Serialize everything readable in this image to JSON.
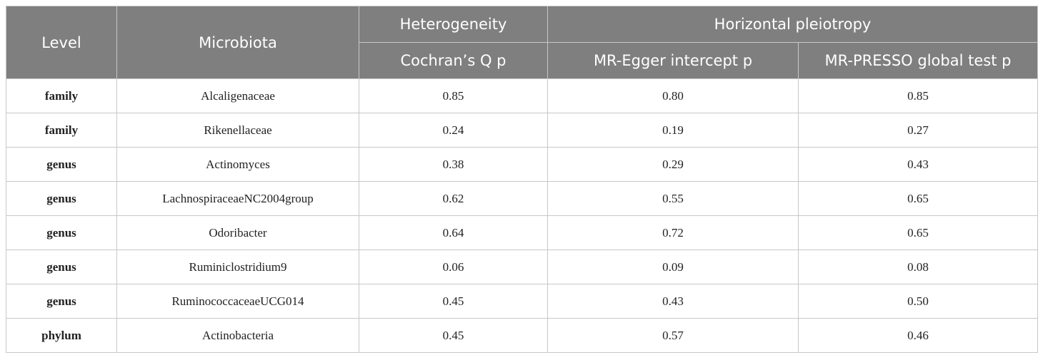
{
  "table": {
    "header": {
      "level": "Level",
      "microbiota": "Microbiota",
      "heterogeneity": "Heterogeneity",
      "horizontal_pleiotropy": "Horizontal pleiotropy",
      "columns": [
        "Cochran’s Q p",
        "MR-Egger intercept p",
        "MR-PRESSO global test p"
      ]
    },
    "rows": [
      [
        "family",
        "Alcaligenaceae",
        "0.85",
        "0.80",
        "0.85"
      ],
      [
        "family",
        "Rikenellaceae",
        "0.24",
        "0.19",
        "0.27"
      ],
      [
        "genus",
        "Actinomyces",
        "0.38",
        "0.29",
        "0.43"
      ],
      [
        "genus",
        "LachnospiraceaeNC2004group",
        "0.62",
        "0.55",
        "0.65"
      ],
      [
        "genus",
        "Odoribacter",
        "0.64",
        "0.72",
        "0.65"
      ],
      [
        "genus",
        "Ruminiclostridium9",
        "0.06",
        "0.09",
        "0.08"
      ],
      [
        "genus",
        "RuminococcaceaeUCG014",
        "0.45",
        "0.43",
        "0.50"
      ],
      [
        "phylum",
        "Actinobacteria",
        "0.45",
        "0.57",
        "0.46"
      ]
    ]
  }
}
